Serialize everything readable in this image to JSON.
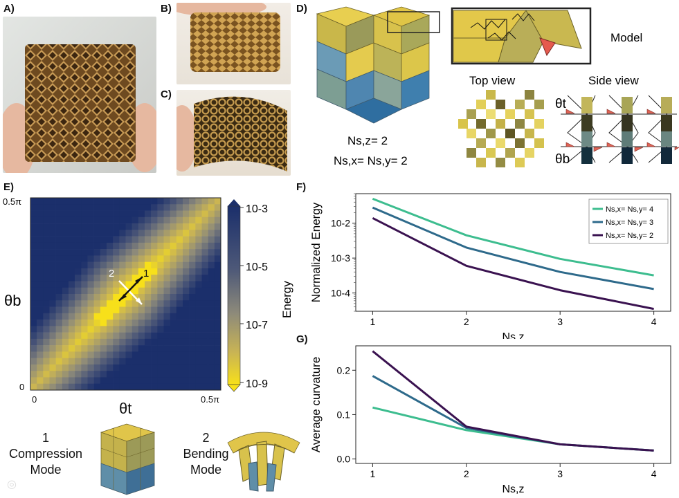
{
  "panels": {
    "a": "A)",
    "b": "B)",
    "c": "C)",
    "d": "D)",
    "e": "E)",
    "f": "F)",
    "g": "G)"
  },
  "panel_d": {
    "model_label": "Model",
    "top_view_label": "Top view",
    "side_view_label": "Side view",
    "nsz_line": "Ns,z= 2",
    "nsxy_line": "Ns,x= Ns,y= 2",
    "theta_t": "θt",
    "theta_b": "θb"
  },
  "panel_e": {
    "y_label": "θb",
    "x_label": "θt",
    "y_ticks": [
      "0.5π",
      "0"
    ],
    "x_ticks": [
      "0",
      "0.5π"
    ],
    "colorbar_label": "Energy",
    "colorbar_ticks": [
      "10-3",
      "10-5",
      "10-7",
      "10-9"
    ],
    "mode1_marker": "1",
    "mode2_marker": "2",
    "mode1_num": "1",
    "mode1_name_a": "Compression",
    "mode1_name_b": "Mode",
    "mode2_num": "2",
    "mode2_name_a": "Bending",
    "mode2_name_b": "Mode"
  },
  "colors": {
    "n4": "#3dbd8f",
    "n3": "#2e6a8b",
    "n2": "#3a1250",
    "energy_high": "#1e3a6e",
    "energy_low": "#f5d90a"
  },
  "chart_data": [
    {
      "type": "line",
      "panel": "F",
      "x": [
        1,
        2,
        3,
        4
      ],
      "xlabel": "Ns,z",
      "ylabel": "Normalized Energy",
      "yscale": "log",
      "ylim": [
        3e-05,
        0.07
      ],
      "yticks": [
        "10-2",
        "10-3",
        "10-4"
      ],
      "xticks": [
        "1",
        "2",
        "3",
        "4"
      ],
      "series": [
        {
          "name": "Ns,x= Ns,y= 4",
          "values": [
            0.05,
            0.0045,
            0.00095,
            0.00032
          ]
        },
        {
          "name": "Ns,x= Ns,y= 3",
          "values": [
            0.028,
            0.002,
            0.0004,
            0.00013
          ]
        },
        {
          "name": "Ns,x= Ns,y= 2",
          "values": [
            0.014,
            0.0006,
            0.00012,
            3.5e-05
          ]
        }
      ]
    },
    {
      "type": "line",
      "panel": "G",
      "x": [
        1,
        2,
        3,
        4
      ],
      "xlabel": "Ns,z",
      "ylabel": "Average curvature",
      "ylim": [
        -0.01,
        0.255
      ],
      "yticks": [
        "0.0",
        "0.1",
        "0.2"
      ],
      "xticks": [
        "1",
        "2",
        "3",
        "4"
      ],
      "series": [
        {
          "name": "Ns,x= Ns,y= 4",
          "values": [
            0.116,
            0.065,
            0.033,
            0.019
          ]
        },
        {
          "name": "Ns,x= Ns,y= 3",
          "values": [
            0.187,
            0.07,
            0.033,
            0.019
          ]
        },
        {
          "name": "Ns,x= Ns,y= 2",
          "values": [
            0.243,
            0.073,
            0.033,
            0.019
          ]
        }
      ]
    }
  ]
}
